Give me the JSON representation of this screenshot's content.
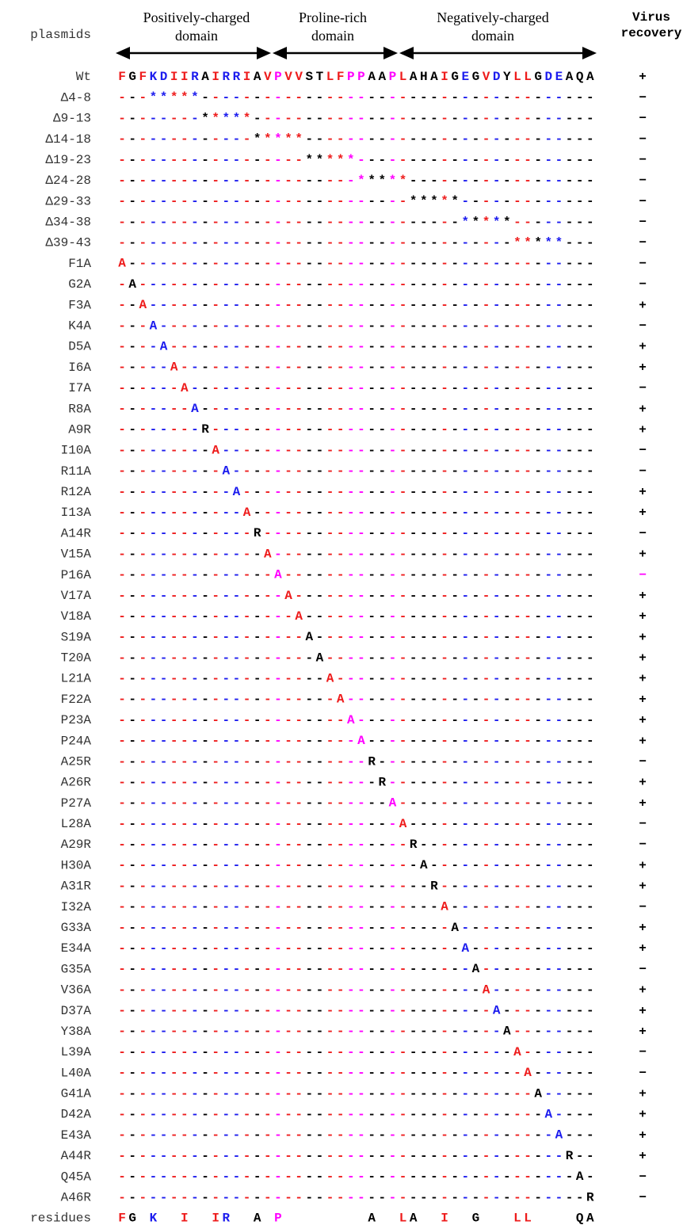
{
  "header": {
    "plasmids_label": "plasmids",
    "domains": [
      {
        "lines": [
          "Positively-charged",
          "domain"
        ]
      },
      {
        "lines": [
          "Proline-rich",
          "domain"
        ]
      },
      {
        "lines": [
          "Negatively-charged",
          "domain"
        ]
      }
    ],
    "recovery_label": [
      "Virus",
      "recovery"
    ]
  },
  "residue_colors": {
    "F": "#ee1c1c",
    "I": "#ee1c1c",
    "L": "#ee1c1c",
    "V": "#ee1c1c",
    "K": "#1c1cee",
    "R": "#1c1cee",
    "D": "#1c1cee",
    "E": "#1c1cee",
    "P": "#ff00ff",
    "G": "#000000",
    "A": "#000000",
    "S": "#000000",
    "T": "#000000",
    "H": "#000000",
    "Y": "#000000",
    "Q": "#000000"
  },
  "rows": [
    {
      "label": "Wt",
      "sequence": "FGFKDIIRAIRRIAVPVVSTLFPPAAPLAHAIGEGVDYLLGDEAQA",
      "recovery": "+"
    },
    {
      "label": "Δ4-8",
      "sequence": "---*****--------------------------------------",
      "recovery": "−"
    },
    {
      "label": "Δ9-13",
      "sequence": "--------*****---------------------------------",
      "recovery": "−"
    },
    {
      "label": "Δ14-18",
      "sequence": "-------------*****----------------------------",
      "recovery": "−"
    },
    {
      "label": "Δ19-23",
      "sequence": "------------------*****-----------------------",
      "recovery": "−"
    },
    {
      "label": "Δ24-28",
      "sequence": "-----------------------*****------------------",
      "recovery": "−"
    },
    {
      "label": "Δ29-33",
      "sequence": "----------------------------*****-------------",
      "recovery": "−"
    },
    {
      "label": "Δ34-38",
      "sequence": "---------------------------------*****--------",
      "recovery": "−"
    },
    {
      "label": "Δ39-43",
      "sequence": "--------------------------------------*****---",
      "recovery": "−"
    },
    {
      "label": "F1A",
      "sequence": "A---------------------------------------------",
      "recovery": "−"
    },
    {
      "label": "G2A",
      "sequence": "-A--------------------------------------------",
      "recovery": "−"
    },
    {
      "label": "F3A",
      "sequence": "--A-------------------------------------------",
      "recovery": "+"
    },
    {
      "label": "K4A",
      "sequence": "---A------------------------------------------",
      "recovery": "−"
    },
    {
      "label": "D5A",
      "sequence": "----A-----------------------------------------",
      "recovery": "+"
    },
    {
      "label": "I6A",
      "sequence": "-----A----------------------------------------",
      "recovery": "+"
    },
    {
      "label": "I7A",
      "sequence": "------A---------------------------------------",
      "recovery": "−"
    },
    {
      "label": "R8A",
      "sequence": "-------A--------------------------------------",
      "recovery": "+"
    },
    {
      "label": "A9R",
      "sequence": "--------R-------------------------------------",
      "recovery": "+"
    },
    {
      "label": "I10A",
      "sequence": "---------A------------------------------------",
      "recovery": "−"
    },
    {
      "label": "R11A",
      "sequence": "----------A-----------------------------------",
      "recovery": "−"
    },
    {
      "label": "R12A",
      "sequence": "-----------A----------------------------------",
      "recovery": "+"
    },
    {
      "label": "I13A",
      "sequence": "------------A---------------------------------",
      "recovery": "+"
    },
    {
      "label": "A14R",
      "sequence": "-------------R--------------------------------",
      "recovery": "−"
    },
    {
      "label": "V15A",
      "sequence": "--------------A-------------------------------",
      "recovery": "+"
    },
    {
      "label": "P16A",
      "sequence": "---------------A------------------------------",
      "recovery": "−",
      "recovery_color": "#ff00ff"
    },
    {
      "label": "V17A",
      "sequence": "----------------A-----------------------------",
      "recovery": "+"
    },
    {
      "label": "V18A",
      "sequence": "-----------------A----------------------------",
      "recovery": "+"
    },
    {
      "label": "S19A",
      "sequence": "------------------A---------------------------",
      "recovery": "+"
    },
    {
      "label": "T20A",
      "sequence": "-------------------A--------------------------",
      "recovery": "+"
    },
    {
      "label": "L21A",
      "sequence": "--------------------A-------------------------",
      "recovery": "+"
    },
    {
      "label": "F22A",
      "sequence": "---------------------A------------------------",
      "recovery": "+"
    },
    {
      "label": "P23A",
      "sequence": "----------------------A-----------------------",
      "recovery": "+"
    },
    {
      "label": "P24A",
      "sequence": "-----------------------A----------------------",
      "recovery": "+"
    },
    {
      "label": "A25R",
      "sequence": "------------------------R---------------------",
      "recovery": "−"
    },
    {
      "label": "A26R",
      "sequence": "-------------------------R--------------------",
      "recovery": "+"
    },
    {
      "label": "P27A",
      "sequence": "--------------------------A-------------------",
      "recovery": "+"
    },
    {
      "label": "L28A",
      "sequence": "---------------------------A------------------",
      "recovery": "−"
    },
    {
      "label": "A29R",
      "sequence": "----------------------------R-----------------",
      "recovery": "−"
    },
    {
      "label": "H30A",
      "sequence": "-----------------------------A----------------",
      "recovery": "+"
    },
    {
      "label": "A31R",
      "sequence": "------------------------------R---------------",
      "recovery": "+"
    },
    {
      "label": "I32A",
      "sequence": "-------------------------------A--------------",
      "recovery": "−"
    },
    {
      "label": "G33A",
      "sequence": "--------------------------------A-------------",
      "recovery": "+"
    },
    {
      "label": "E34A",
      "sequence": "---------------------------------A------------",
      "recovery": "+"
    },
    {
      "label": "G35A",
      "sequence": "----------------------------------A-----------",
      "recovery": "−"
    },
    {
      "label": "V36A",
      "sequence": "-----------------------------------A----------",
      "recovery": "+"
    },
    {
      "label": "D37A",
      "sequence": "------------------------------------A---------",
      "recovery": "+"
    },
    {
      "label": "Y38A",
      "sequence": "-------------------------------------A--------",
      "recovery": "+"
    },
    {
      "label": "L39A",
      "sequence": "--------------------------------------A-------",
      "recovery": "−"
    },
    {
      "label": "L40A",
      "sequence": "---------------------------------------A------",
      "recovery": "−"
    },
    {
      "label": "G41A",
      "sequence": "----------------------------------------A-----",
      "recovery": "+"
    },
    {
      "label": "D42A",
      "sequence": "-----------------------------------------A----",
      "recovery": "+"
    },
    {
      "label": "E43A",
      "sequence": "------------------------------------------A---",
      "recovery": "+"
    },
    {
      "label": "A44R",
      "sequence": "-------------------------------------------R--",
      "recovery": "+"
    },
    {
      "label": "Q45A",
      "sequence": "--------------------------------------------A-",
      "recovery": "−"
    },
    {
      "label": "A46R",
      "sequence": "---------------------------------------------R",
      "recovery": "−"
    }
  ],
  "residues": {
    "label": "residues",
    "sequence": "FG K  I  IR  A P        A  LA  I  G   LL    QA"
  }
}
